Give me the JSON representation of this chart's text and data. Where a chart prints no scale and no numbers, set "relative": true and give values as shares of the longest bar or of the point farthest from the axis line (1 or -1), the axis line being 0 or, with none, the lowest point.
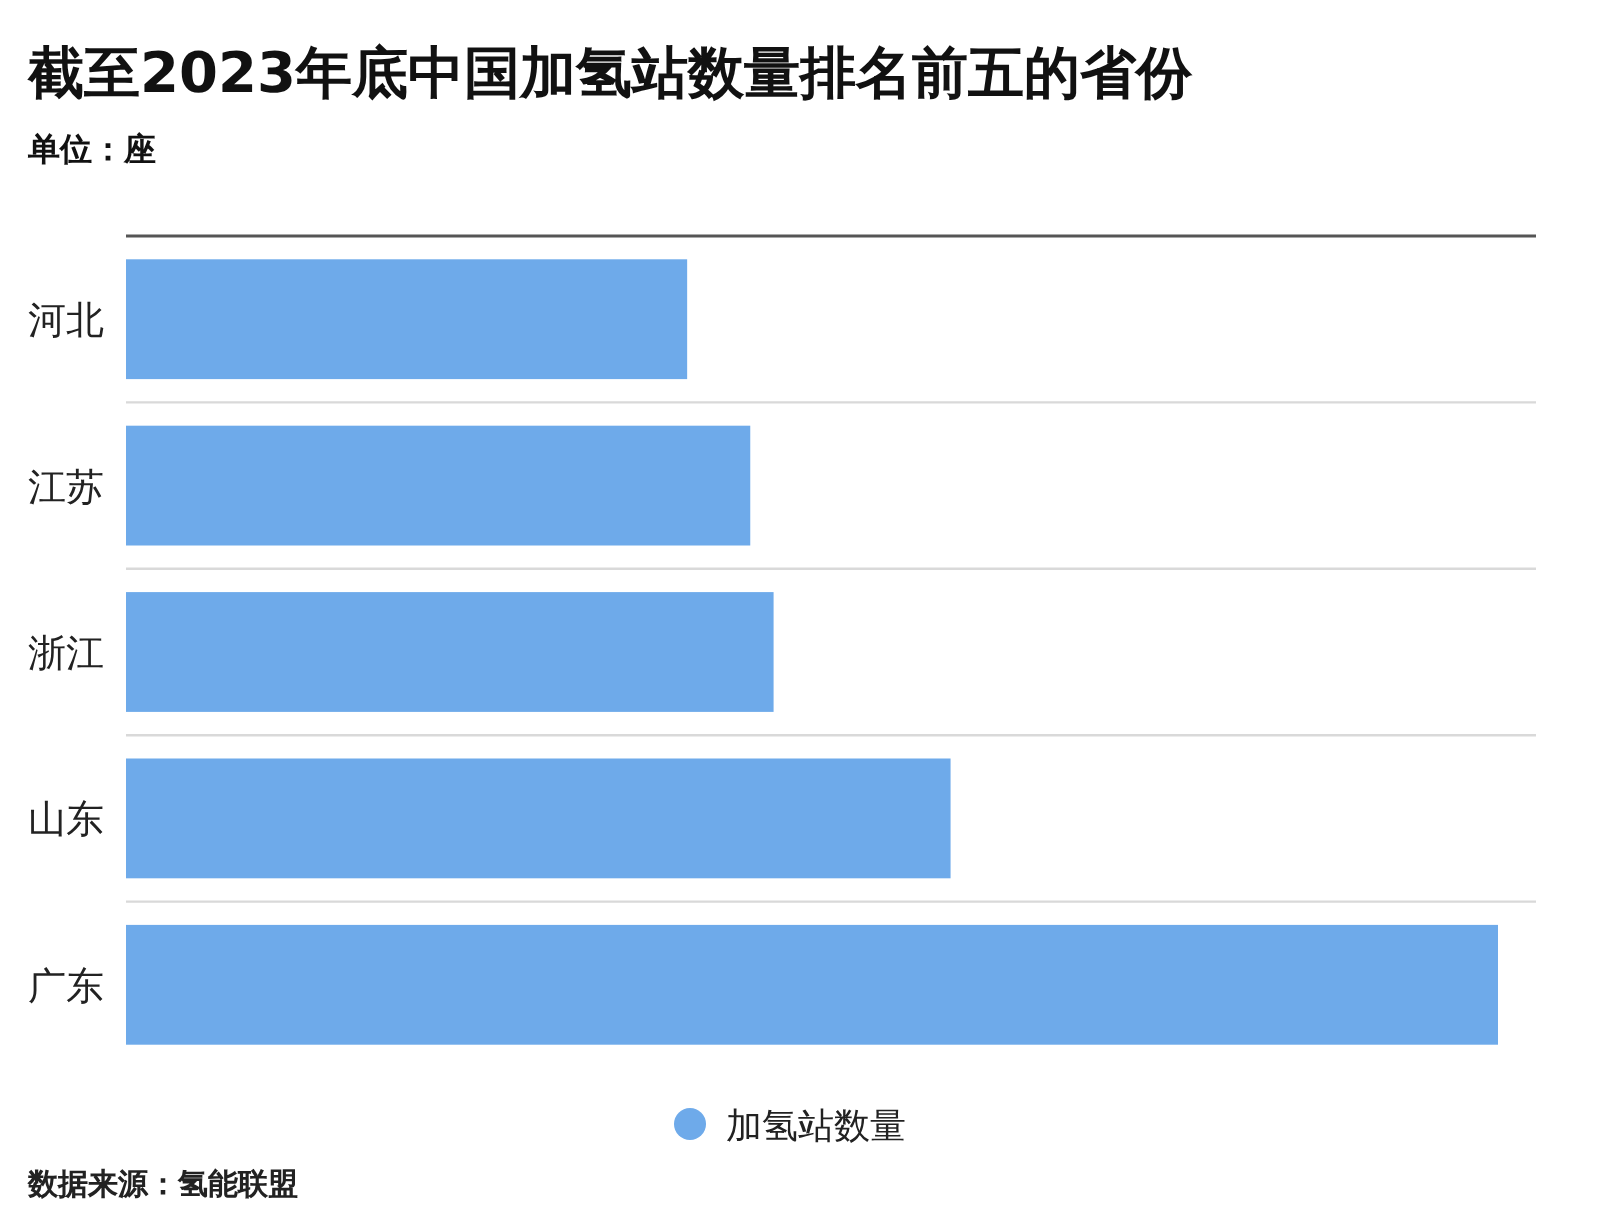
{
  "chart_data": {
    "type": "bar",
    "orientation": "horizontal",
    "relative": true,
    "title": "截至2023年底中国加氢站数量排名前五的省份",
    "subtitle": "单位：座",
    "categories": [
      "河北",
      "江苏",
      "浙江",
      "山东",
      "广东"
    ],
    "series": [
      {
        "name": "加氢站数量",
        "color": "#6eaaea",
        "values": [
          0.409,
          0.455,
          0.472,
          0.601,
          1
        ]
      }
    ],
    "legend": "bottom",
    "annotations": [
      "数据来源：氢能联盟"
    ]
  }
}
